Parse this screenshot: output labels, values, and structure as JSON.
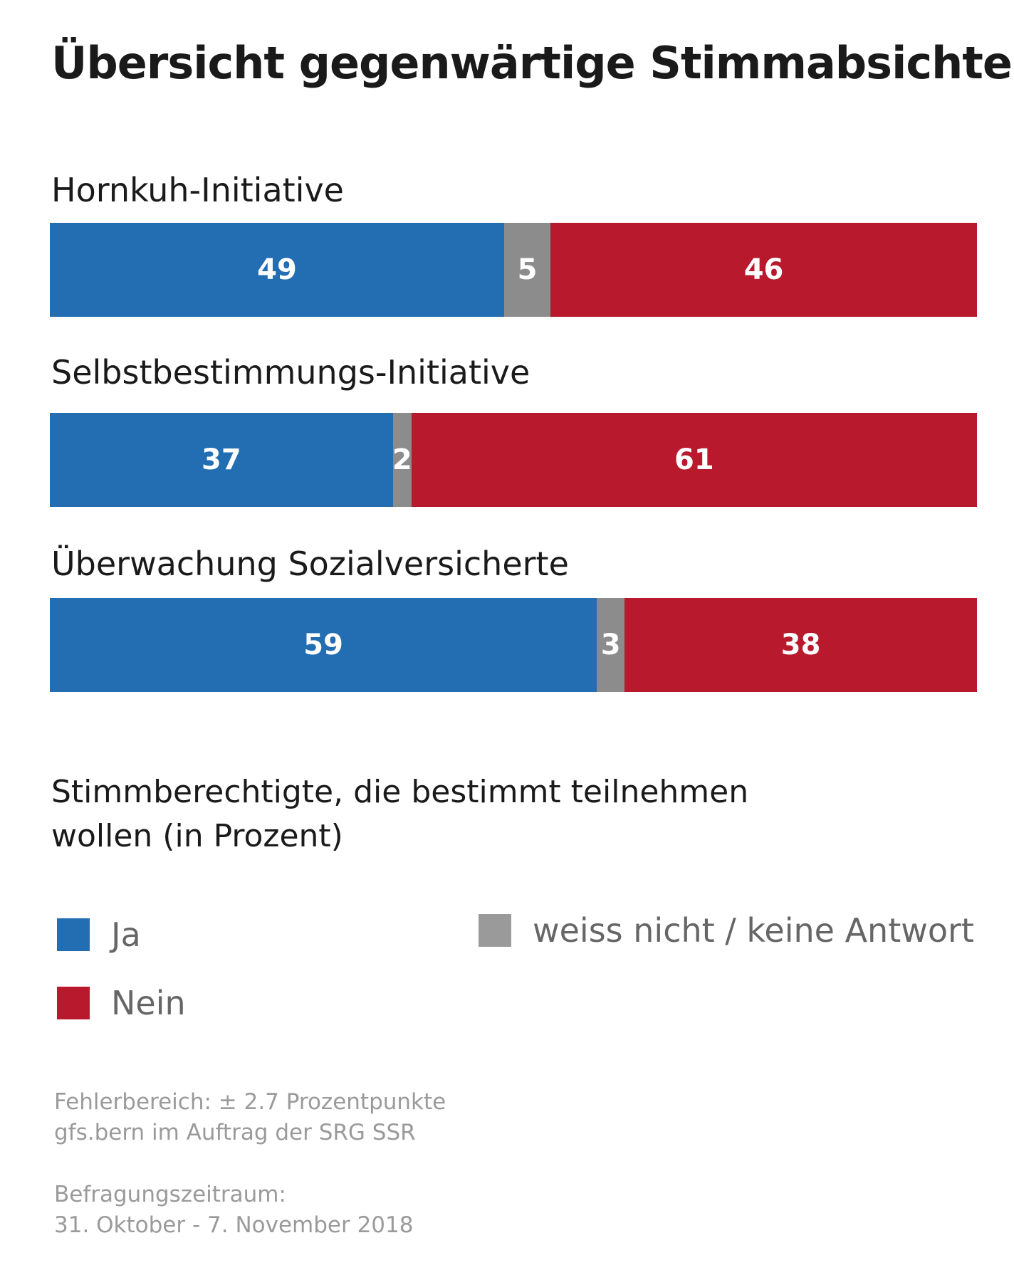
{
  "title": "Übersicht gegenwärtige Stimmabsichten",
  "colors": {
    "ja": "#236db3",
    "weiss_nicht": "#8c8c8c",
    "nein": "#b8192d",
    "legend_grey": "#9a9a9a"
  },
  "chart_data": {
    "type": "bar",
    "orientation": "horizontal-stacked",
    "title": "Übersicht gegenwärtige Stimmabsichten",
    "categories": [
      "Hornkuh-Initiative",
      "Selbstbestimmungs-Initiative",
      "Überwachung Sozialversicherte"
    ],
    "series": [
      {
        "name": "Ja",
        "values": [
          49,
          37,
          59
        ]
      },
      {
        "name": "weiss nicht / keine Antwort",
        "values": [
          5,
          2,
          3
        ]
      },
      {
        "name": "Nein",
        "values": [
          46,
          61,
          38
        ]
      }
    ],
    "xlim": [
      0,
      100
    ],
    "unit": "Prozent"
  },
  "subtitle": "Stimmberechtigte, die bestimmt teilnehmen wollen (in Prozent)",
  "legend": {
    "ja": "Ja",
    "nein": "Nein",
    "weiss_nicht": "weiss nicht / keine Antwort"
  },
  "footer": {
    "error_line": "Fehlerbereich: ± 2.7 Prozentpunkte",
    "source_line": "gfs.bern im Auftrag der SRG SSR",
    "period_label": "Befragungszeitraum:",
    "period_value": "31. Oktober - 7. November 2018"
  }
}
